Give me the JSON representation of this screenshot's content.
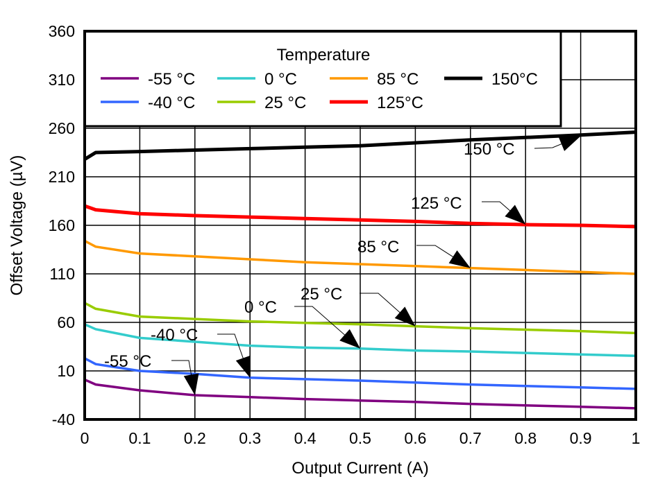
{
  "chart_data": {
    "type": "line",
    "title": "",
    "xlabel": "Output Current (A)",
    "ylabel": "Offset Voltage (µV)",
    "xlim": [
      0,
      1
    ],
    "ylim": [
      -40,
      360
    ],
    "xticks": [
      0,
      0.1,
      0.2,
      0.3,
      0.4,
      0.5,
      0.6,
      0.7,
      0.8,
      0.9,
      1
    ],
    "xtick_labels": [
      "0",
      "0.1",
      "0.2",
      "0.3",
      "0.4",
      "0.5",
      "0.6",
      "0.7",
      "0.8",
      "0.9",
      "1"
    ],
    "yticks": [
      -40,
      10,
      60,
      110,
      160,
      210,
      260,
      310,
      360
    ],
    "ytick_labels": [
      "-40",
      "10",
      "60",
      "110",
      "160",
      "210",
      "260",
      "310",
      "360"
    ],
    "grid": true,
    "legend": {
      "title": "Temperature",
      "placement": "top-left"
    },
    "x": [
      0,
      0.02,
      0.1,
      0.2,
      0.3,
      0.4,
      0.5,
      0.6,
      0.7,
      0.8,
      0.9,
      1
    ],
    "series": [
      {
        "name": "-55 °C",
        "color": "#800080",
        "values": [
          1,
          -4,
          -10,
          -15,
          -17,
          -19,
          -20.5,
          -22,
          -24,
          -25.5,
          -27,
          -28.5
        ]
      },
      {
        "name": "-40 °C",
        "color": "#3366ff",
        "values": [
          23,
          17,
          10,
          7,
          3,
          1.5,
          0,
          -2,
          -4,
          -5.5,
          -7,
          -8.5
        ]
      },
      {
        "name": "0 °C",
        "color": "#33cccc",
        "values": [
          58,
          53,
          44,
          40,
          36,
          34,
          33,
          31,
          30,
          28.5,
          27,
          25.5
        ]
      },
      {
        "name": "25 °C",
        "color": "#99cc00",
        "values": [
          80,
          74,
          66,
          63.5,
          61,
          59.5,
          58,
          56,
          54,
          52.5,
          51,
          49
        ]
      },
      {
        "name": "85 °C",
        "color": "#ff9900",
        "values": [
          144,
          138,
          131,
          128,
          125,
          122,
          120,
          118,
          116,
          114,
          112,
          110
        ]
      },
      {
        "name": "125°C",
        "color": "#ff0000",
        "values": [
          180,
          176,
          172,
          170,
          168.5,
          167,
          165.5,
          164,
          162,
          160.7,
          160,
          158.7
        ]
      },
      {
        "name": "150°C",
        "color": "#000000",
        "values": [
          228,
          235,
          236,
          237.5,
          239,
          240.5,
          242,
          245,
          248,
          250.5,
          253,
          256
        ]
      }
    ],
    "annotations": [
      {
        "text": "150 °C",
        "x": 0.9,
        "y": 252
      },
      {
        "text": "125 °C",
        "x": 0.8,
        "y": 161
      },
      {
        "text": "85 °C",
        "x": 0.7,
        "y": 116
      },
      {
        "text": "25 °C",
        "x": 0.6,
        "y": 56
      },
      {
        "text": "0 °C",
        "x": 0.5,
        "y": 33
      },
      {
        "text": "-40 °C",
        "x": 0.3,
        "y": 3
      },
      {
        "text": "-55 °C",
        "x": 0.2,
        "y": -15
      }
    ]
  }
}
